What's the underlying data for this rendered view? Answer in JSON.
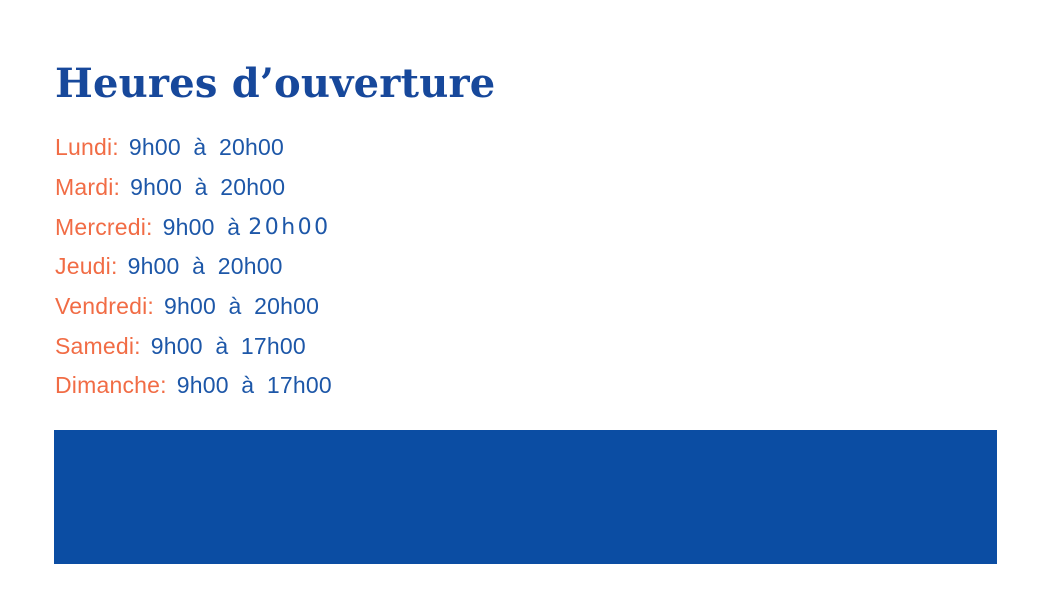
{
  "page": {
    "title": "Heures d’ouverture"
  },
  "hours": {
    "items": [
      {
        "day": "Lundi:",
        "time": "9h00 à 20h00"
      },
      {
        "day": "Mardi:",
        "time": "9h00 à 20h00"
      },
      {
        "day": "Mercredi:",
        "time": "9h00 à",
        "time_alt": "20h00"
      },
      {
        "day": "Jeudi:",
        "time": "9h00 à 20h00"
      },
      {
        "day": "Vendredi:",
        "time": "9h00 à 20h00"
      },
      {
        "day": "Samedi:",
        "time": "9h00 à 17h00"
      },
      {
        "day": "Dimanche:",
        "time": "9h00 à 17h00"
      }
    ]
  },
  "colors": {
    "title_blue": "#17489b",
    "day_orange": "#f16c45",
    "time_blue": "#1d57a8",
    "banner_blue": "#0b4da3"
  }
}
